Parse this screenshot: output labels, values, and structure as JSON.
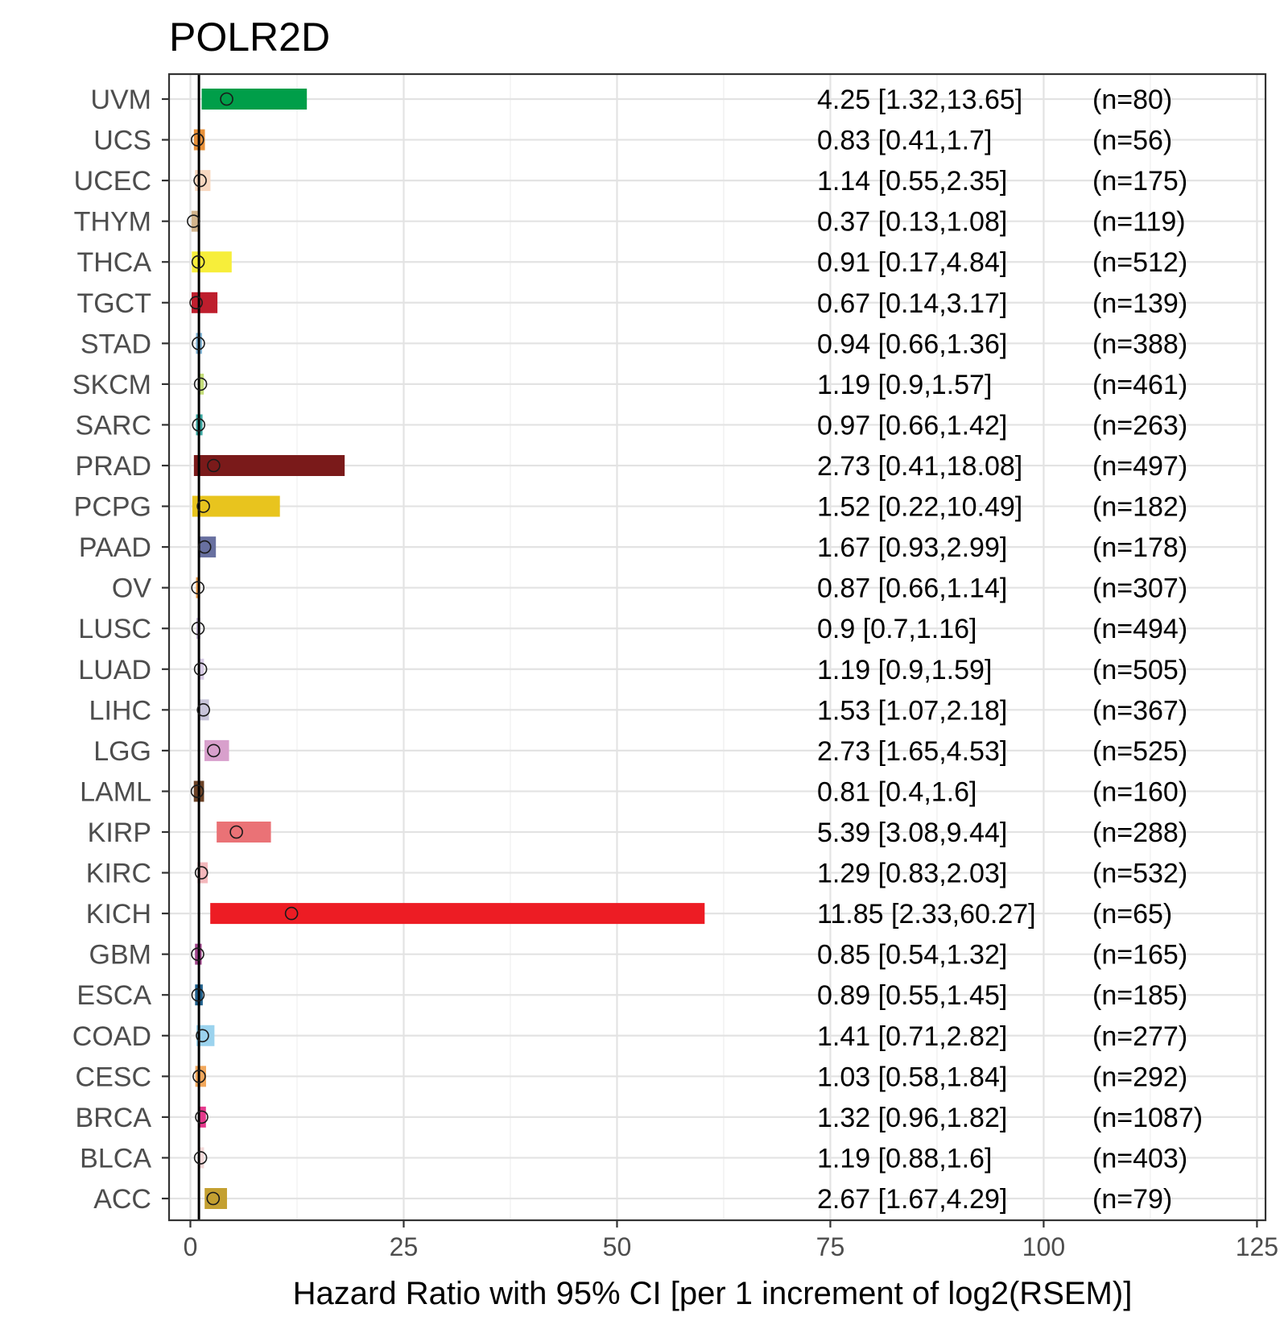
{
  "chart_data": {
    "type": "forest",
    "title": "POLR2D",
    "xlabel": "Hazard Ratio with 95% CI [per 1 increment of log2(RSEM)]",
    "ylabel": "",
    "xlim": [
      -2.5,
      126
    ],
    "xticks": [
      0,
      25,
      50,
      75,
      100,
      125
    ],
    "reference_line": 1,
    "grid": true,
    "rows": [
      {
        "name": "UVM",
        "hr": 4.25,
        "lo": 1.32,
        "hi": 13.65,
        "label": "4.25 [1.32,13.65]",
        "n": "(n=80)",
        "color": "#009E49"
      },
      {
        "name": "UCS",
        "hr": 0.83,
        "lo": 0.41,
        "hi": 1.7,
        "label": "0.83 [0.41,1.7]",
        "n": "(n=56)",
        "color": "#E8913A"
      },
      {
        "name": "UCEC",
        "hr": 1.14,
        "lo": 0.55,
        "hi": 2.35,
        "label": "1.14 [0.55,2.35]",
        "n": "(n=175)",
        "color": "#F8D8C0"
      },
      {
        "name": "THYM",
        "hr": 0.37,
        "lo": 0.13,
        "hi": 1.08,
        "label": "0.37 [0.13,1.08]",
        "n": "(n=119)",
        "color": "#D2B48C"
      },
      {
        "name": "THCA",
        "hr": 0.91,
        "lo": 0.17,
        "hi": 4.84,
        "label": "0.91 [0.17,4.84]",
        "n": "(n=512)",
        "color": "#F7EE3A"
      },
      {
        "name": "TGCT",
        "hr": 0.67,
        "lo": 0.14,
        "hi": 3.17,
        "label": "0.67 [0.14,3.17]",
        "n": "(n=139)",
        "color": "#BE1E2D"
      },
      {
        "name": "STAD",
        "hr": 0.94,
        "lo": 0.66,
        "hi": 1.36,
        "label": "0.94 [0.66,1.36]",
        "n": "(n=388)",
        "color": "#7FB3D5"
      },
      {
        "name": "SKCM",
        "hr": 1.19,
        "lo": 0.9,
        "hi": 1.57,
        "label": "1.19 [0.9,1.57]",
        "n": "(n=461)",
        "color": "#C5DE7A"
      },
      {
        "name": "SARC",
        "hr": 0.97,
        "lo": 0.66,
        "hi": 1.42,
        "label": "0.97 [0.66,1.42]",
        "n": "(n=263)",
        "color": "#3AA6A0"
      },
      {
        "name": "PRAD",
        "hr": 2.73,
        "lo": 0.41,
        "hi": 18.08,
        "label": "2.73 [0.41,18.08]",
        "n": "(n=497)",
        "color": "#7A1A1A"
      },
      {
        "name": "PCPG",
        "hr": 1.52,
        "lo": 0.22,
        "hi": 10.49,
        "label": "1.52 [0.22,10.49]",
        "n": "(n=182)",
        "color": "#E8C41E"
      },
      {
        "name": "PAAD",
        "hr": 1.67,
        "lo": 0.93,
        "hi": 2.99,
        "label": "1.67 [0.93,2.99]",
        "n": "(n=178)",
        "color": "#6870A0"
      },
      {
        "name": "OV",
        "hr": 0.87,
        "lo": 0.66,
        "hi": 1.14,
        "label": "0.87 [0.66,1.14]",
        "n": "(n=307)",
        "color": "#E89A4A"
      },
      {
        "name": "LUSC",
        "hr": 0.9,
        "lo": 0.7,
        "hi": 1.16,
        "label": "0.9 [0.7,1.16]",
        "n": "(n=494)",
        "color": "#C8BAD8"
      },
      {
        "name": "LUAD",
        "hr": 1.19,
        "lo": 0.9,
        "hi": 1.59,
        "label": "1.19 [0.9,1.59]",
        "n": "(n=505)",
        "color": "#D8CCE6"
      },
      {
        "name": "LIHC",
        "hr": 1.53,
        "lo": 1.07,
        "hi": 2.18,
        "label": "1.53 [1.07,2.18]",
        "n": "(n=367)",
        "color": "#C8C4DA"
      },
      {
        "name": "LGG",
        "hr": 2.73,
        "lo": 1.65,
        "hi": 4.53,
        "label": "2.73 [1.65,4.53]",
        "n": "(n=525)",
        "color": "#D8A0CC"
      },
      {
        "name": "LAML",
        "hr": 0.81,
        "lo": 0.4,
        "hi": 1.6,
        "label": "0.81 [0.4,1.6]",
        "n": "(n=160)",
        "color": "#6B4226"
      },
      {
        "name": "KIRP",
        "hr": 5.39,
        "lo": 3.08,
        "hi": 9.44,
        "label": "5.39 [3.08,9.44]",
        "n": "(n=288)",
        "color": "#EA7276"
      },
      {
        "name": "KIRC",
        "hr": 1.29,
        "lo": 0.83,
        "hi": 2.03,
        "label": "1.29 [0.83,2.03]",
        "n": "(n=532)",
        "color": "#F4B8BC"
      },
      {
        "name": "KICH",
        "hr": 11.85,
        "lo": 2.33,
        "hi": 60.27,
        "label": "11.85 [2.33,60.27]",
        "n": "(n=65)",
        "color": "#ED1C24"
      },
      {
        "name": "GBM",
        "hr": 0.85,
        "lo": 0.54,
        "hi": 1.32,
        "label": "0.85 [0.54,1.32]",
        "n": "(n=165)",
        "color": "#A0468C"
      },
      {
        "name": "ESCA",
        "hr": 0.89,
        "lo": 0.55,
        "hi": 1.45,
        "label": "0.89 [0.55,1.45]",
        "n": "(n=185)",
        "color": "#1F5F8B"
      },
      {
        "name": "COAD",
        "hr": 1.41,
        "lo": 0.71,
        "hi": 2.82,
        "label": "1.41 [0.71,2.82]",
        "n": "(n=277)",
        "color": "#9BD3EE"
      },
      {
        "name": "CESC",
        "hr": 1.03,
        "lo": 0.58,
        "hi": 1.84,
        "label": "1.03 [0.58,1.84]",
        "n": "(n=292)",
        "color": "#F2A85C"
      },
      {
        "name": "BRCA",
        "hr": 1.32,
        "lo": 0.96,
        "hi": 1.82,
        "label": "1.32 [0.96,1.82]",
        "n": "(n=1087)",
        "color": "#E5398C"
      },
      {
        "name": "BLCA",
        "hr": 1.19,
        "lo": 0.88,
        "hi": 1.6,
        "label": "1.19 [0.88,1.6]",
        "n": "(n=403)",
        "color": "#F3D9D9"
      },
      {
        "name": "ACC",
        "hr": 2.67,
        "lo": 1.67,
        "hi": 4.29,
        "label": "2.67 [1.67,4.29]",
        "n": "(n=79)",
        "color": "#C4A031"
      }
    ]
  }
}
